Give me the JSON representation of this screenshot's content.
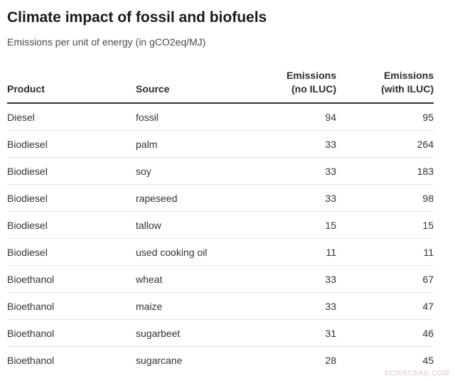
{
  "title": "Climate impact of fossil and biofuels",
  "subtitle": "Emissions per unit of energy (in gCO2eq/MJ)",
  "watermark": "SCIENCEAQ.COM",
  "chart_data": {
    "type": "table",
    "columns": [
      {
        "label": "Product",
        "lines": [
          "Product"
        ]
      },
      {
        "label": "Source",
        "lines": [
          "Source"
        ]
      },
      {
        "label": "Emissions (no ILUC)",
        "lines": [
          "Emissions",
          "(no ILUC)"
        ]
      },
      {
        "label": "Emissions (with ILUC)",
        "lines": [
          "Emissions",
          "(with ILUC)"
        ]
      }
    ],
    "rows": [
      {
        "product": "Diesel",
        "source": "fossil",
        "no_iluc": 94,
        "with_iluc": 95
      },
      {
        "product": "Biodiesel",
        "source": "palm",
        "no_iluc": 33,
        "with_iluc": 264
      },
      {
        "product": "Biodiesel",
        "source": "soy",
        "no_iluc": 33,
        "with_iluc": 183
      },
      {
        "product": "Biodiesel",
        "source": "rapeseed",
        "no_iluc": 33,
        "with_iluc": 98
      },
      {
        "product": "Biodiesel",
        "source": "tallow",
        "no_iluc": 15,
        "with_iluc": 15
      },
      {
        "product": "Biodiesel",
        "source": "used cooking oil",
        "no_iluc": 11,
        "with_iluc": 11
      },
      {
        "product": "Bioethanol",
        "source": "wheat",
        "no_iluc": 33,
        "with_iluc": 67
      },
      {
        "product": "Bioethanol",
        "source": "maize",
        "no_iluc": 33,
        "with_iluc": 47
      },
      {
        "product": "Bioethanol",
        "source": "sugarbeet",
        "no_iluc": 31,
        "with_iluc": 46
      },
      {
        "product": "Bioethanol",
        "source": "sugarcane",
        "no_iluc": 28,
        "with_iluc": 45
      }
    ]
  }
}
